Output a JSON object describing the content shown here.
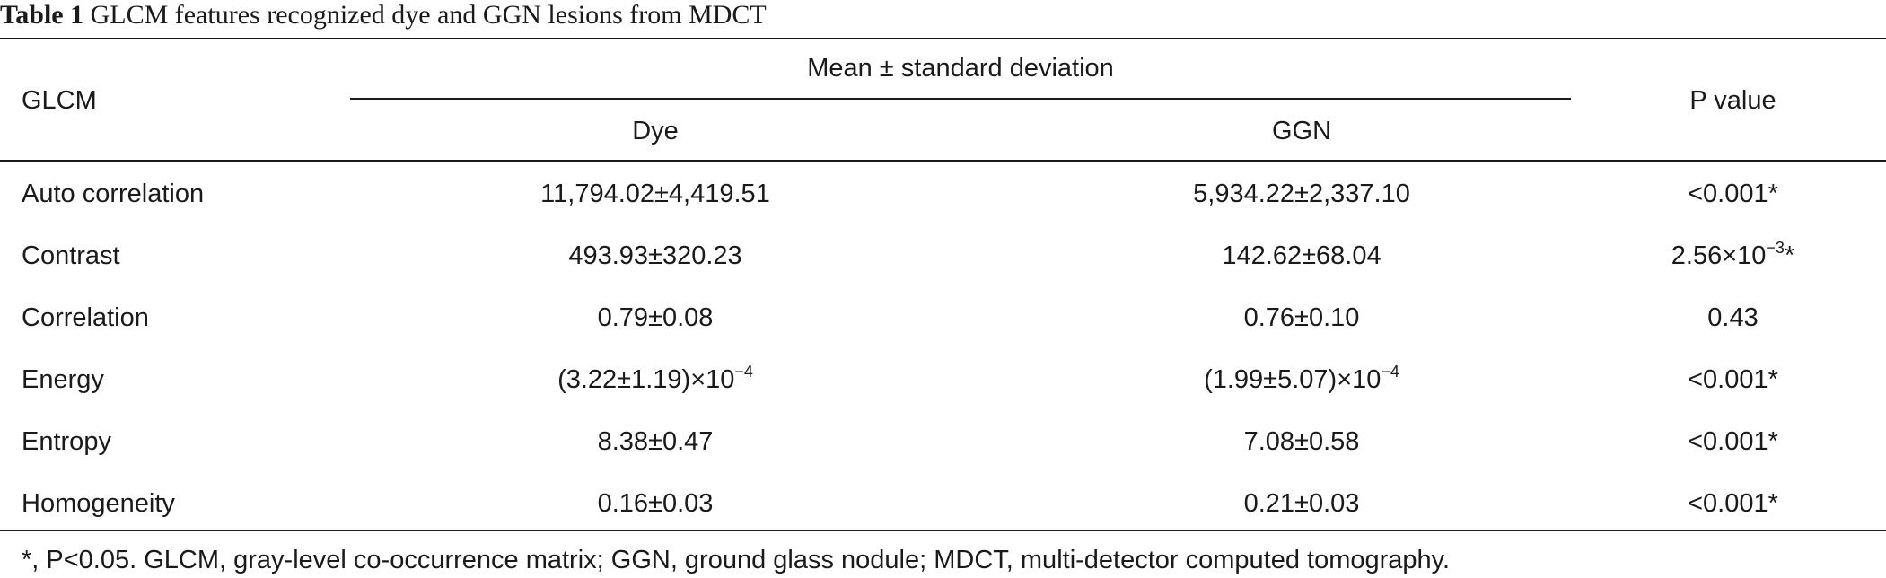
{
  "caption": {
    "label": "Table 1",
    "title": "GLCM features recognized dye and GGN lesions from MDCT"
  },
  "header": {
    "col_glcm": "GLCM",
    "group_label": "Mean ± standard deviation",
    "col_dye": "Dye",
    "col_ggn": "GGN",
    "col_p": "P value"
  },
  "rows": [
    {
      "feature": "Auto correlation",
      "dye": {
        "text": "11,794.02±4,419.51",
        "sup": ""
      },
      "ggn": {
        "text": "5,934.22±2,337.10",
        "sup": ""
      },
      "p": {
        "text": "<0.001*",
        "sup": "",
        "after": ""
      }
    },
    {
      "feature": "Contrast",
      "dye": {
        "text": "493.93±320.23",
        "sup": ""
      },
      "ggn": {
        "text": "142.62±68.04",
        "sup": ""
      },
      "p": {
        "text": "2.56×10",
        "sup": "−3",
        "after": "*"
      }
    },
    {
      "feature": "Correlation",
      "dye": {
        "text": "0.79±0.08",
        "sup": ""
      },
      "ggn": {
        "text": "0.76±0.10",
        "sup": ""
      },
      "p": {
        "text": "0.43",
        "sup": "",
        "after": ""
      }
    },
    {
      "feature": "Energy",
      "dye": {
        "text": "(3.22±1.19)×10",
        "sup": "−4"
      },
      "ggn": {
        "text": "(1.99±5.07)×10",
        "sup": "−4"
      },
      "p": {
        "text": "<0.001*",
        "sup": "",
        "after": ""
      }
    },
    {
      "feature": "Entropy",
      "dye": {
        "text": "8.38±0.47",
        "sup": ""
      },
      "ggn": {
        "text": "7.08±0.58",
        "sup": ""
      },
      "p": {
        "text": "<0.001*",
        "sup": "",
        "after": ""
      }
    },
    {
      "feature": "Homogeneity",
      "dye": {
        "text": "0.16±0.03",
        "sup": ""
      },
      "ggn": {
        "text": "0.21±0.03",
        "sup": ""
      },
      "p": {
        "text": "<0.001*",
        "sup": "",
        "after": ""
      }
    }
  ],
  "footnote": "*, P<0.05. GLCM, gray-level co-occurrence matrix; GGN, ground glass nodule; MDCT, multi-detector computed tomography."
}
